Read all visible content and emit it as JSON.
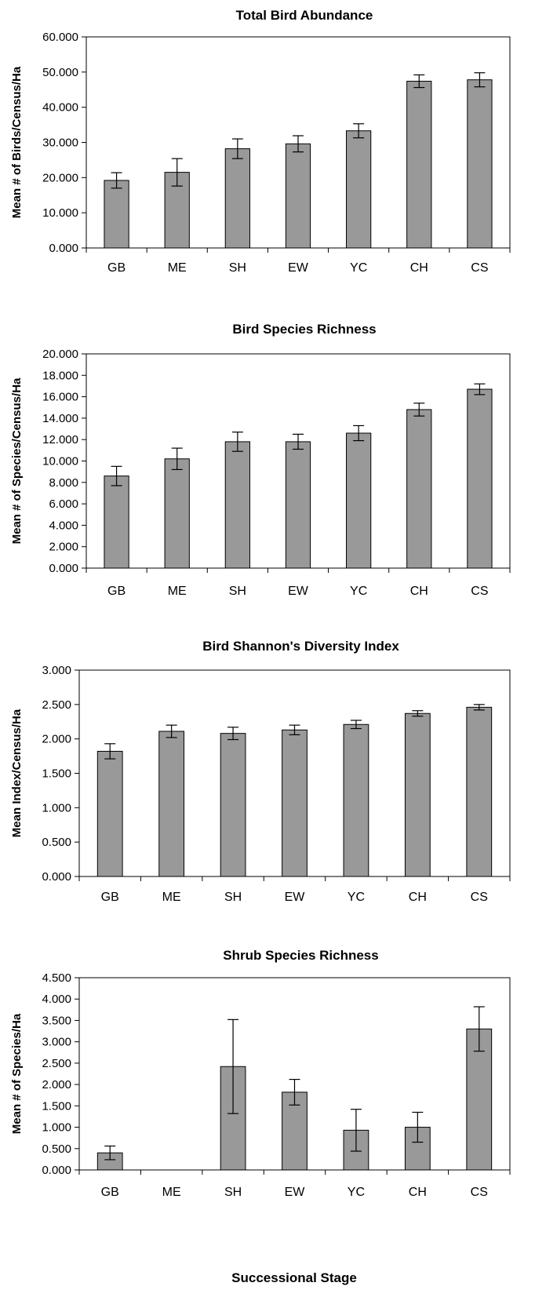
{
  "figure": {
    "xlabel": "Successional Stage"
  },
  "chart_data": [
    {
      "type": "bar",
      "title": "Total Bird Abundance",
      "ylabel": "Mean # of Birds/Census/Ha",
      "categories": [
        "GB",
        "ME",
        "SH",
        "EW",
        "YC",
        "CH",
        "CS"
      ],
      "values": [
        19.2,
        21.5,
        28.2,
        29.6,
        33.3,
        47.4,
        47.8
      ],
      "error": [
        2.2,
        3.9,
        2.8,
        2.3,
        2.0,
        1.8,
        2.0
      ],
      "ylim": [
        0,
        60
      ],
      "yticks": [
        "0.000",
        "10.000",
        "20.000",
        "30.000",
        "40.000",
        "50.000",
        "60.000"
      ],
      "grid": false,
      "bar_color": "#999999"
    },
    {
      "type": "bar",
      "title": "Bird Species Richness",
      "ylabel": "Mean # of Species/Census/Ha",
      "categories": [
        "GB",
        "ME",
        "SH",
        "EW",
        "YC",
        "CH",
        "CS"
      ],
      "values": [
        8.6,
        10.2,
        11.8,
        11.8,
        12.6,
        14.8,
        16.7
      ],
      "error": [
        0.9,
        1.0,
        0.9,
        0.7,
        0.7,
        0.6,
        0.5
      ],
      "ylim": [
        0,
        20
      ],
      "yticks": [
        "0.000",
        "2.000",
        "4.000",
        "6.000",
        "8.000",
        "10.000",
        "12.000",
        "14.000",
        "16.000",
        "18.000",
        "20.000"
      ],
      "grid": false,
      "bar_color": "#999999"
    },
    {
      "type": "bar",
      "title": "Bird Shannon's Diversity Index",
      "ylabel": "Mean Index/Census/Ha",
      "categories": [
        "GB",
        "ME",
        "SH",
        "EW",
        "YC",
        "CH",
        "CS"
      ],
      "values": [
        1.82,
        2.11,
        2.08,
        2.13,
        2.21,
        2.37,
        2.46
      ],
      "error": [
        0.11,
        0.09,
        0.09,
        0.07,
        0.06,
        0.04,
        0.04
      ],
      "ylim": [
        0,
        3
      ],
      "yticks": [
        "0.000",
        "0.500",
        "1.000",
        "1.500",
        "2.000",
        "2.500",
        "3.000"
      ],
      "grid": false,
      "bar_color": "#999999"
    },
    {
      "type": "bar",
      "title": "Shrub Species Richness",
      "ylabel": "Mean # of Species/Ha",
      "categories": [
        "GB",
        "ME",
        "SH",
        "EW",
        "YC",
        "CH",
        "CS"
      ],
      "values": [
        0.4,
        0.0,
        2.42,
        1.82,
        0.93,
        1.0,
        3.3
      ],
      "error": [
        0.16,
        0.0,
        1.1,
        0.3,
        0.49,
        0.35,
        0.52
      ],
      "ylim": [
        0,
        4.5
      ],
      "yticks": [
        "0.000",
        "0.500",
        "1.000",
        "1.500",
        "2.000",
        "2.500",
        "3.000",
        "3.500",
        "4.000",
        "4.500"
      ],
      "grid": false,
      "bar_color": "#999999"
    }
  ]
}
